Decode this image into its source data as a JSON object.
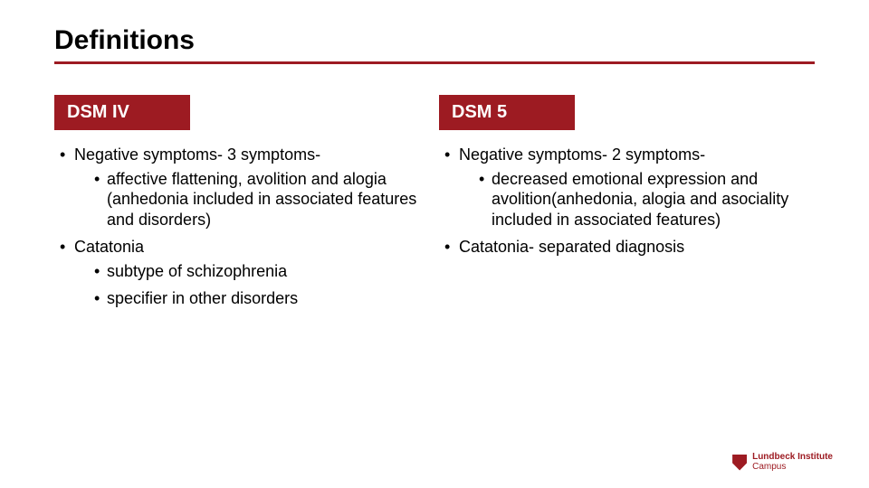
{
  "title": "Definitions",
  "accent_color": "#9d1b22",
  "background_color": "#ffffff",
  "text_color": "#000000",
  "title_fontsize": 30,
  "body_fontsize": 18,
  "columns": {
    "left": {
      "heading": "DSM IV",
      "items": [
        {
          "text": "Negative symptoms- 3 symptoms-",
          "sub": [
            "affective flattening, avolition and alogia (anhedonia included in associated features and disorders)"
          ]
        },
        {
          "text": "Catatonia",
          "sub": [
            "subtype of schizophrenia",
            "specifier in other disorders"
          ]
        }
      ]
    },
    "right": {
      "heading": "DSM 5",
      "items": [
        {
          "text": "Negative symptoms- 2 symptoms-",
          "sub": [
            "decreased emotional expression and avolition(anhedonia, alogia and asociality included in associated features)"
          ]
        },
        {
          "text": "Catatonia- separated diagnosis",
          "sub": []
        }
      ]
    }
  },
  "footer": {
    "line1": "Lundbeck Institute",
    "line2": "Campus",
    "logo_color": "#9d1b22"
  }
}
